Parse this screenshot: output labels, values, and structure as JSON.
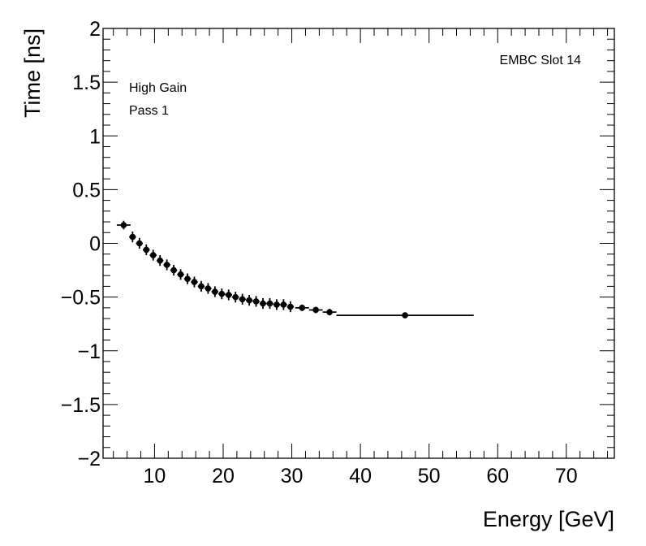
{
  "chart_data": {
    "type": "scatter",
    "xlabel": "Energy [GeV]",
    "ylabel": "Time [ns]",
    "xlim": [
      2.5,
      77
    ],
    "ylim": [
      -2,
      2
    ],
    "x_ticks": [
      10,
      20,
      30,
      40,
      50,
      60,
      70
    ],
    "x_tick_labels": [
      "10",
      "20",
      "30",
      "40",
      "50",
      "60",
      "70"
    ],
    "y_ticks": [
      -2,
      -1.5,
      -1,
      -0.5,
      0,
      0.5,
      1,
      1.5,
      2
    ],
    "y_tick_labels": [
      "−2",
      "−1.5",
      "−1",
      "−0.5",
      "0",
      "0.5",
      "1",
      "1.5",
      "2"
    ],
    "annotations": {
      "slot": "EMBC Slot 14",
      "gain": "High Gain",
      "pass": "Pass 1"
    },
    "grid": false,
    "series": [
      {
        "points": [
          {
            "x": 5.5,
            "y": 0.17,
            "xerr": 1.0,
            "yerr": 0.04
          },
          {
            "x": 6.8,
            "y": 0.06,
            "xerr": 0.5,
            "yerr": 0.05
          },
          {
            "x": 7.8,
            "y": 0.0,
            "xerr": 0.5,
            "yerr": 0.05
          },
          {
            "x": 8.8,
            "y": -0.06,
            "xerr": 0.5,
            "yerr": 0.05
          },
          {
            "x": 9.8,
            "y": -0.11,
            "xerr": 0.5,
            "yerr": 0.05
          },
          {
            "x": 10.8,
            "y": -0.16,
            "xerr": 0.5,
            "yerr": 0.05
          },
          {
            "x": 11.8,
            "y": -0.2,
            "xerr": 0.5,
            "yerr": 0.05
          },
          {
            "x": 12.8,
            "y": -0.25,
            "xerr": 0.5,
            "yerr": 0.05
          },
          {
            "x": 13.8,
            "y": -0.29,
            "xerr": 0.5,
            "yerr": 0.05
          },
          {
            "x": 14.8,
            "y": -0.33,
            "xerr": 0.5,
            "yerr": 0.05
          },
          {
            "x": 15.8,
            "y": -0.36,
            "xerr": 0.5,
            "yerr": 0.05
          },
          {
            "x": 16.8,
            "y": -0.4,
            "xerr": 0.5,
            "yerr": 0.05
          },
          {
            "x": 17.8,
            "y": -0.42,
            "xerr": 0.5,
            "yerr": 0.05
          },
          {
            "x": 18.8,
            "y": -0.45,
            "xerr": 0.5,
            "yerr": 0.05
          },
          {
            "x": 19.8,
            "y": -0.47,
            "xerr": 0.5,
            "yerr": 0.05
          },
          {
            "x": 20.8,
            "y": -0.48,
            "xerr": 0.5,
            "yerr": 0.05
          },
          {
            "x": 21.8,
            "y": -0.5,
            "xerr": 0.5,
            "yerr": 0.05
          },
          {
            "x": 22.8,
            "y": -0.52,
            "xerr": 0.5,
            "yerr": 0.05
          },
          {
            "x": 23.8,
            "y": -0.53,
            "xerr": 0.5,
            "yerr": 0.05
          },
          {
            "x": 24.8,
            "y": -0.54,
            "xerr": 0.5,
            "yerr": 0.05
          },
          {
            "x": 25.8,
            "y": -0.56,
            "xerr": 0.5,
            "yerr": 0.05
          },
          {
            "x": 26.8,
            "y": -0.56,
            "xerr": 0.5,
            "yerr": 0.05
          },
          {
            "x": 27.8,
            "y": -0.57,
            "xerr": 0.5,
            "yerr": 0.05
          },
          {
            "x": 28.8,
            "y": -0.57,
            "xerr": 0.5,
            "yerr": 0.05
          },
          {
            "x": 29.8,
            "y": -0.59,
            "xerr": 0.5,
            "yerr": 0.05
          },
          {
            "x": 31.5,
            "y": -0.6,
            "xerr": 1.0,
            "yerr": 0.03
          },
          {
            "x": 33.5,
            "y": -0.62,
            "xerr": 1.0,
            "yerr": 0.03
          },
          {
            "x": 35.5,
            "y": -0.64,
            "xerr": 1.0,
            "yerr": 0.03
          },
          {
            "x": 46.5,
            "y": -0.67,
            "xerr": 10.0,
            "yerr": 0.0
          }
        ]
      }
    ],
    "colors": {
      "marker": "#000000",
      "frame": "#000000",
      "background": "#ffffff"
    }
  }
}
